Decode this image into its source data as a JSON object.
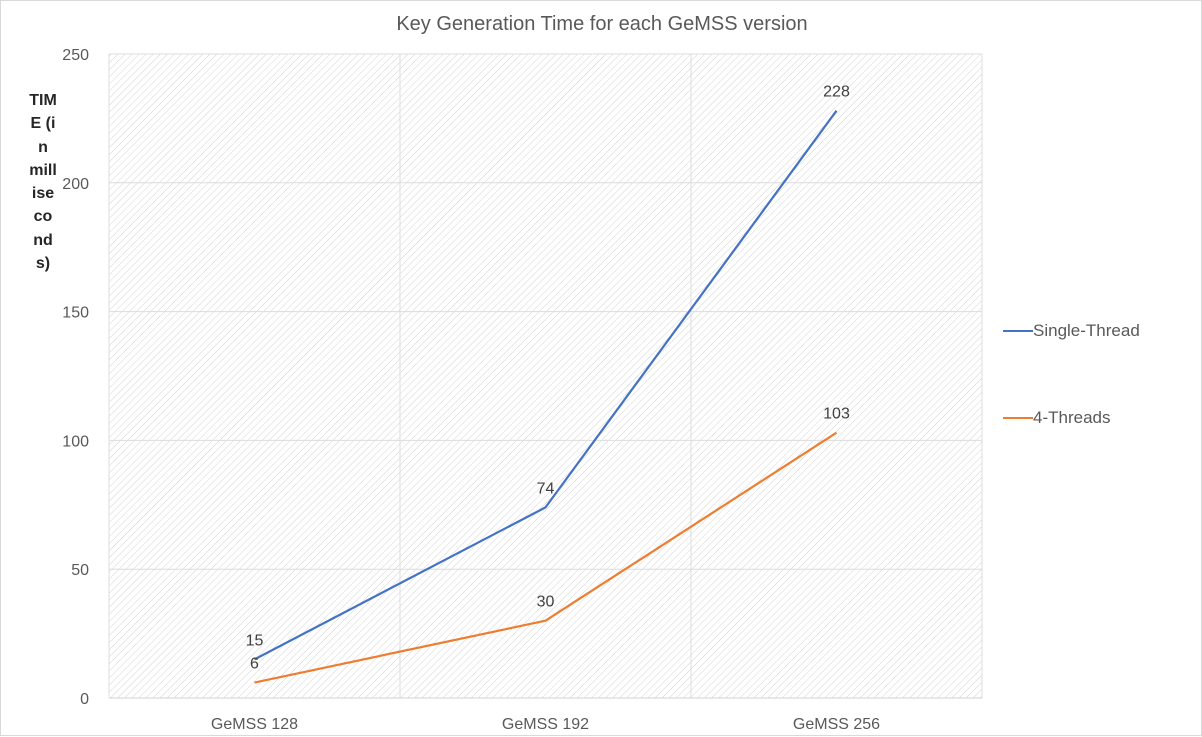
{
  "chart_data": {
    "type": "line",
    "title": "Key Generation Time for each GeMSS version",
    "xlabel": "",
    "ylabel": "TIME (in milliseconds)",
    "categories": [
      "GeMSS 128",
      "GeMSS 192",
      "GeMSS 256"
    ],
    "ylim": [
      0,
      250
    ],
    "yticks": [
      0,
      50,
      100,
      150,
      200,
      250
    ],
    "grid": true,
    "legend_position": "right",
    "series": [
      {
        "name": "Single-Thread",
        "values": [
          15,
          74,
          228
        ],
        "color": "#4472c4"
      },
      {
        "name": "4-Threads",
        "values": [
          6,
          30,
          103
        ],
        "color": "#ed7d31"
      }
    ]
  }
}
